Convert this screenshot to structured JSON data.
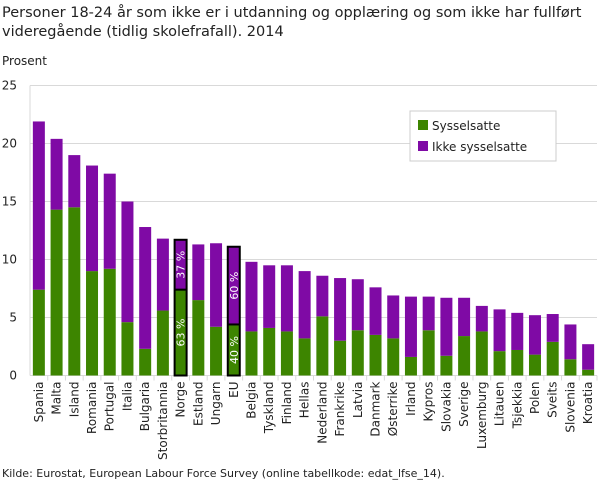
{
  "chart_data": {
    "type": "bar",
    "stacked": true,
    "title": "Personer 18-24 år som ikke er i utdanning og opplæring og som ikke har fullført videregående (tidlig skolefrafall). 2014",
    "ylabel": "Prosent",
    "xlabel": "",
    "ylim": [
      0,
      25
    ],
    "yticks": [
      0,
      5,
      10,
      15,
      20,
      25
    ],
    "grid": true,
    "legend_position": "top-right",
    "source": "Kilde: Eurostat, European Labour Force Survey (online tabellkode: edat_lfse_14).",
    "categories": [
      "Spania",
      "Malta",
      "Island",
      "Romania",
      "Portugal",
      "Italia",
      "Bulgaria",
      "Storbritannia",
      "Norge",
      "Estland",
      "Ungarn",
      "EU",
      "Belgia",
      "Tyskland",
      "Finland",
      "Hellas",
      "Nederland",
      "Frankrike",
      "Latvia",
      "Danmark",
      "Østerrike",
      "Irland",
      "Kypros",
      "Slovakia",
      "Sverige",
      "Luxemburg",
      "Litauen",
      "Tsjekkia",
      "Polen",
      "Sveits",
      "Slovenia",
      "Kroatia"
    ],
    "highlighted": [
      "Norge",
      "EU"
    ],
    "series": [
      {
        "name": "Sysselsatte",
        "color": "#3d8500",
        "values": [
          7.4,
          14.3,
          14.5,
          9.0,
          9.2,
          4.6,
          2.3,
          5.6,
          7.4,
          6.5,
          4.2,
          4.4,
          3.8,
          4.1,
          3.8,
          3.2,
          5.1,
          3.0,
          3.9,
          3.5,
          3.2,
          1.6,
          3.9,
          1.7,
          3.4,
          3.8,
          2.1,
          2.2,
          1.8,
          2.9,
          1.4,
          0.5
        ]
      },
      {
        "name": "Ikke sysselsatte",
        "color": "#7f0aa5",
        "values": [
          14.5,
          6.1,
          4.5,
          9.1,
          8.2,
          10.4,
          10.5,
          6.2,
          4.3,
          4.8,
          7.2,
          6.7,
          6.0,
          5.4,
          5.7,
          5.8,
          3.5,
          5.4,
          4.4,
          4.1,
          3.7,
          5.2,
          2.9,
          5.0,
          3.3,
          2.2,
          3.6,
          3.2,
          3.4,
          2.4,
          3.0,
          2.2
        ]
      }
    ],
    "annotations": [
      {
        "category": "Norge",
        "series": "Sysselsatte",
        "text": "63 %"
      },
      {
        "category": "Norge",
        "series": "Ikke sysselsatte",
        "text": "37 %"
      },
      {
        "category": "EU",
        "series": "Sysselsatte",
        "text": "40 %"
      },
      {
        "category": "EU",
        "series": "Ikke sysselsatte",
        "text": "60 %"
      }
    ]
  }
}
